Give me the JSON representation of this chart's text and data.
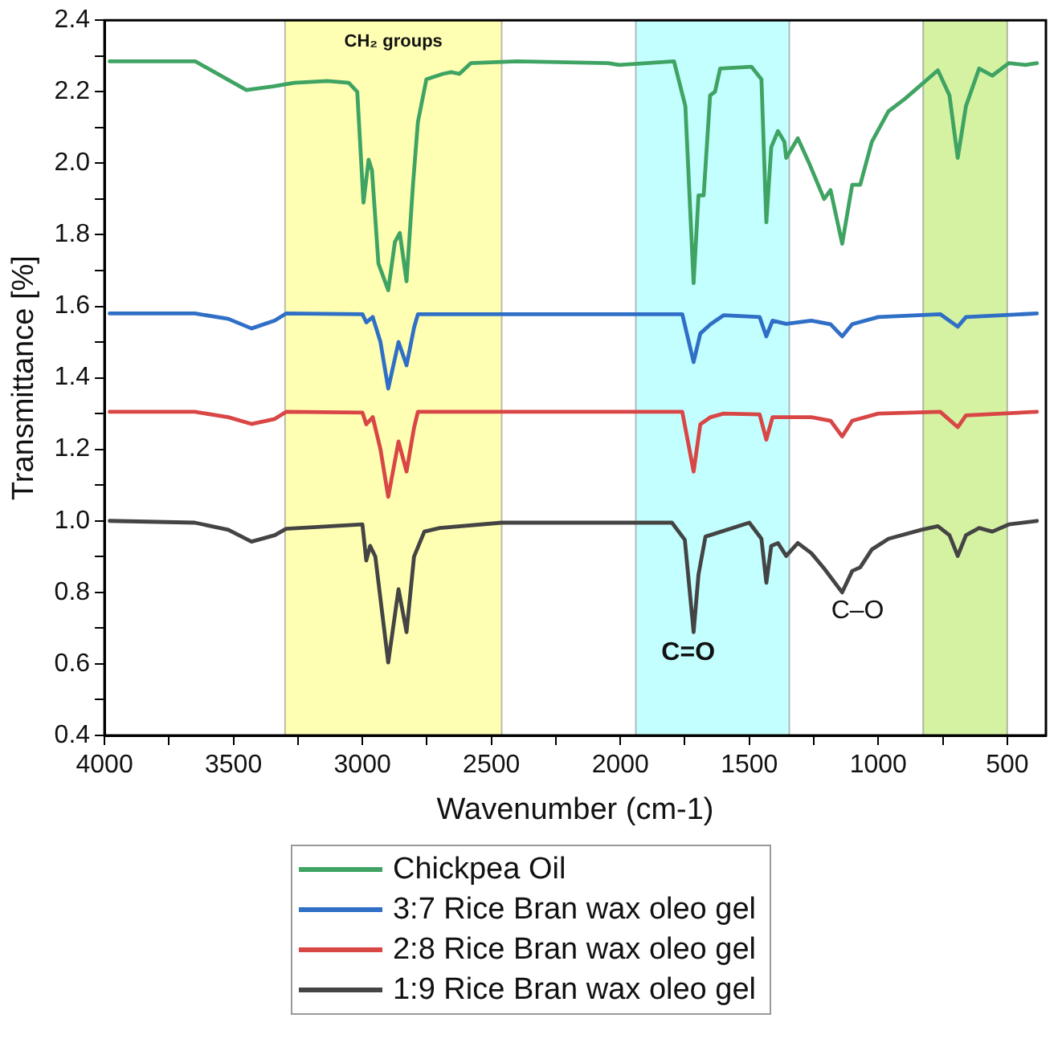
{
  "chart_data": {
    "type": "line",
    "xlabel": "Wavenumber (cm-1)",
    "ylabel": "Transmittance [%]",
    "xlim": [
      4000,
      350
    ],
    "ylim": [
      0.4,
      2.4
    ],
    "xticks": [
      4000,
      {
        "value": 3750,
        "label": null
      },
      3500,
      {
        "value": 3250,
        "label": null
      },
      3000,
      {
        "value": 2750,
        "label": null
      },
      2500,
      {
        "value": 2250,
        "label": null
      },
      2000,
      {
        "value": 1750,
        "label": null
      },
      1500,
      {
        "value": 1250,
        "label": null
      },
      1000,
      {
        "value": 750,
        "label": null
      },
      500
    ],
    "yticks": [
      {
        "value": 0.4,
        "label": "0.4"
      },
      {
        "value": 0.5,
        "label": null
      },
      {
        "value": 0.6,
        "label": "0.6"
      },
      {
        "value": 0.7,
        "label": null
      },
      {
        "value": 0.8,
        "label": "0.8"
      },
      {
        "value": 0.9,
        "label": null
      },
      {
        "value": 1.0,
        "label": "1.0"
      },
      {
        "value": 1.1,
        "label": null
      },
      {
        "value": 1.2,
        "label": "1.2"
      },
      {
        "value": 1.3,
        "label": null
      },
      {
        "value": 1.4,
        "label": "1.4"
      },
      {
        "value": 1.5,
        "label": null
      },
      {
        "value": 1.6,
        "label": "1.6"
      },
      {
        "value": 1.7,
        "label": null
      },
      {
        "value": 1.8,
        "label": "1.8"
      },
      {
        "value": 1.9,
        "label": null
      },
      {
        "value": 2.0,
        "label": "2.0"
      },
      {
        "value": 2.1,
        "label": null
      },
      {
        "value": 2.2,
        "label": "2.2"
      },
      {
        "value": 2.3,
        "label": null
      },
      {
        "value": 2.4,
        "label": "2.4"
      }
    ],
    "legend": "bottom",
    "marker": "none",
    "line_style": "solid",
    "bands": [
      {
        "axis": "x",
        "from": 3300,
        "to": 2460,
        "label": "CH₂ groups",
        "color": "#ffffb3"
      },
      {
        "axis": "x",
        "from": 1940,
        "to": 1345,
        "label": null,
        "color": "#c4ffff"
      },
      {
        "axis": "x",
        "from": 826,
        "to": 500,
        "label": null,
        "color": "#d5f2a3"
      }
    ],
    "annotations": [
      "C=O",
      "C–O"
    ],
    "series": [
      {
        "name": "Chickpea Oil",
        "color": "#3fa463",
        "x": [
          3980,
          3648,
          3450,
          3347,
          3264,
          3136,
          3053,
          3020,
          2996,
          2976,
          2963,
          2938,
          2900,
          2874,
          2855,
          2829,
          2804,
          2785,
          2752,
          2688,
          2656,
          2624,
          2580,
          2400,
          2048,
          2004,
          1792,
          1748,
          1716,
          1697,
          1677,
          1652,
          1633,
          1613,
          1492,
          1453,
          1434,
          1415,
          1389,
          1364,
          1357,
          1312,
          1268,
          1210,
          1185,
          1140,
          1101,
          1070,
          1025,
          961,
          897,
          833,
          769,
          724,
          692,
          660,
          609,
          558,
          494,
          430,
          385
        ],
        "values": [
          2.285,
          2.285,
          2.205,
          2.215,
          2.225,
          2.23,
          2.225,
          2.2,
          1.89,
          2.01,
          1.98,
          1.72,
          1.645,
          1.78,
          1.805,
          1.67,
          1.94,
          2.115,
          2.235,
          2.25,
          2.255,
          2.25,
          2.28,
          2.285,
          2.28,
          2.275,
          2.285,
          2.16,
          1.665,
          1.91,
          1.91,
          2.19,
          2.2,
          2.265,
          2.27,
          2.235,
          1.835,
          2.045,
          2.09,
          2.06,
          2.015,
          2.07,
          2.0,
          1.9,
          1.925,
          1.775,
          1.94,
          1.94,
          2.06,
          2.145,
          2.18,
          2.22,
          2.26,
          2.19,
          2.015,
          2.16,
          2.265,
          2.245,
          2.28,
          2.275,
          2.28
        ]
      },
      {
        "name": "3:7 Rice Bran wax oleo gel",
        "color": "#2f6fc6",
        "x": [
          3980,
          3650,
          3520,
          3430,
          3340,
          3296,
          3000,
          2985,
          2960,
          2930,
          2900,
          2860,
          2829,
          2800,
          2785,
          1760,
          1716,
          1690,
          1650,
          1600,
          1460,
          1434,
          1410,
          1357,
          1260,
          1185,
          1140,
          1101,
          1000,
          760,
          692,
          660,
          385
        ],
        "values": [
          1.58,
          1.58,
          1.565,
          1.538,
          1.56,
          1.58,
          1.578,
          1.555,
          1.57,
          1.5,
          1.37,
          1.5,
          1.435,
          1.54,
          1.578,
          1.578,
          1.444,
          1.524,
          1.55,
          1.575,
          1.57,
          1.516,
          1.56,
          1.551,
          1.56,
          1.55,
          1.516,
          1.55,
          1.57,
          1.578,
          1.543,
          1.57,
          1.58
        ]
      },
      {
        "name": "2:8 Rice Bran wax oleo gel",
        "color": "#d94646",
        "x": [
          3980,
          3650,
          3520,
          3430,
          3340,
          3296,
          3000,
          2985,
          2960,
          2930,
          2900,
          2860,
          2829,
          2800,
          2785,
          1760,
          1716,
          1690,
          1650,
          1600,
          1460,
          1434,
          1410,
          1357,
          1260,
          1185,
          1140,
          1101,
          1000,
          760,
          692,
          660,
          385
        ],
        "values": [
          1.305,
          1.305,
          1.29,
          1.271,
          1.285,
          1.305,
          1.303,
          1.27,
          1.29,
          1.2,
          1.067,
          1.222,
          1.138,
          1.26,
          1.305,
          1.305,
          1.138,
          1.27,
          1.29,
          1.3,
          1.298,
          1.227,
          1.29,
          1.29,
          1.29,
          1.28,
          1.236,
          1.28,
          1.3,
          1.305,
          1.262,
          1.295,
          1.305
        ]
      },
      {
        "name": "1:9 Rice Bran wax oleo gel",
        "color": "#444444",
        "x": [
          3980,
          3650,
          3520,
          3430,
          3340,
          3296,
          3000,
          2985,
          2970,
          2950,
          2900,
          2860,
          2829,
          2800,
          2760,
          2700,
          2460,
          1800,
          1750,
          1716,
          1697,
          1670,
          1500,
          1453,
          1434,
          1415,
          1389,
          1357,
          1312,
          1260,
          1210,
          1140,
          1101,
          1070,
          1025,
          960,
          833,
          769,
          724,
          692,
          660,
          609,
          558,
          494,
          385
        ],
        "values": [
          1.0,
          0.995,
          0.975,
          0.942,
          0.96,
          0.978,
          0.99,
          0.889,
          0.93,
          0.9,
          0.604,
          0.809,
          0.689,
          0.9,
          0.97,
          0.98,
          0.995,
          0.995,
          0.947,
          0.689,
          0.85,
          0.956,
          0.995,
          0.95,
          0.827,
          0.93,
          0.938,
          0.902,
          0.938,
          0.91,
          0.867,
          0.8,
          0.86,
          0.87,
          0.92,
          0.95,
          0.975,
          0.985,
          0.96,
          0.902,
          0.96,
          0.98,
          0.97,
          0.99,
          1.0
        ]
      }
    ]
  }
}
